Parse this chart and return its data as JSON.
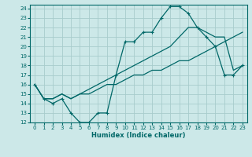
{
  "xlabel": "Humidex (Indice chaleur)",
  "bg_color": "#cce8e8",
  "grid_color": "#a8cccc",
  "line_color": "#006868",
  "xlim": [
    -0.5,
    23.5
  ],
  "ylim": [
    12,
    24.4
  ],
  "xticks": [
    0,
    1,
    2,
    3,
    4,
    5,
    6,
    7,
    8,
    9,
    10,
    11,
    12,
    13,
    14,
    15,
    16,
    17,
    18,
    19,
    20,
    21,
    22,
    23
  ],
  "yticks": [
    12,
    13,
    14,
    15,
    16,
    17,
    18,
    19,
    20,
    21,
    22,
    23,
    24
  ],
  "line1_x": [
    0,
    1,
    2,
    3,
    4,
    5,
    6,
    7,
    8,
    9,
    10,
    11,
    12,
    13,
    14,
    15,
    16,
    17,
    18,
    19,
    20,
    21,
    22,
    23
  ],
  "line1_y": [
    16,
    14.5,
    14,
    14.5,
    13,
    12,
    12,
    13,
    13,
    17,
    20.5,
    20.5,
    21.5,
    21.5,
    23,
    24.2,
    24.2,
    23.5,
    22,
    21,
    20,
    17,
    17,
    18
  ],
  "line2_x": [
    0,
    1,
    2,
    3,
    4,
    5,
    6,
    7,
    8,
    9,
    10,
    11,
    12,
    13,
    14,
    15,
    16,
    17,
    18,
    19,
    20,
    21,
    22,
    23
  ],
  "line2_y": [
    16,
    14.5,
    14.5,
    15,
    14.5,
    15,
    15,
    15.5,
    16,
    16,
    16.5,
    17,
    17,
    17.5,
    17.5,
    18,
    18.5,
    18.5,
    19,
    19.5,
    20,
    20.5,
    21,
    21.5
  ],
  "line3_x": [
    0,
    1,
    2,
    3,
    4,
    5,
    6,
    7,
    8,
    9,
    10,
    11,
    12,
    13,
    14,
    15,
    16,
    17,
    18,
    19,
    20,
    21,
    22,
    23
  ],
  "line3_y": [
    16,
    14.5,
    14.5,
    15,
    14.5,
    15,
    15.5,
    16,
    16.5,
    17,
    17.5,
    18,
    18.5,
    19,
    19.5,
    20,
    21,
    22,
    22,
    21.5,
    21,
    21,
    17.5,
    18
  ]
}
